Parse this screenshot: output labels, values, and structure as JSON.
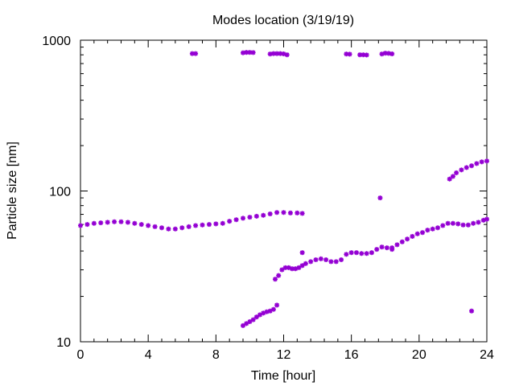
{
  "chart_data": {
    "type": "scatter",
    "title": "Modes location (3/19/19)",
    "xlabel": "Time [hour]",
    "ylabel": "Particle size [nm]",
    "xlim": [
      0,
      24
    ],
    "ylim": [
      10,
      1000
    ],
    "yscale": "log",
    "xticks": [
      0,
      4,
      8,
      12,
      16,
      20,
      24
    ],
    "xtick_labels": [
      "0",
      "4",
      "8",
      "12",
      "16",
      "20",
      "24"
    ],
    "yticks": [
      10,
      100,
      1000
    ],
    "ytick_labels": [
      "10",
      "100",
      "1000"
    ],
    "grid": false,
    "marker_color": "#9400d3",
    "series": [
      {
        "points": [
          [
            0,
            59
          ],
          [
            0.4,
            60
          ],
          [
            0.8,
            61
          ],
          [
            1.2,
            61.5
          ],
          [
            1.6,
            62
          ],
          [
            2,
            62.5
          ],
          [
            2.4,
            62.5
          ],
          [
            2.8,
            62
          ],
          [
            3.2,
            61
          ],
          [
            3.6,
            60
          ],
          [
            4,
            59
          ],
          [
            4.4,
            58
          ],
          [
            4.8,
            57
          ],
          [
            5.2,
            56
          ],
          [
            5.6,
            56
          ],
          [
            6,
            57
          ],
          [
            6.4,
            58
          ],
          [
            6.8,
            59
          ],
          [
            7.2,
            59.5
          ],
          [
            7.6,
            60
          ],
          [
            8,
            60.5
          ],
          [
            8.4,
            61
          ],
          [
            8.8,
            63
          ],
          [
            9.2,
            64.5
          ],
          [
            9.6,
            66
          ],
          [
            10,
            67
          ],
          [
            10.4,
            68
          ],
          [
            10.8,
            69
          ],
          [
            11.2,
            70.5
          ],
          [
            11.6,
            72
          ],
          [
            12,
            72
          ],
          [
            12.4,
            71.5
          ],
          [
            12.8,
            71.5
          ],
          [
            13.1,
            71
          ],
          [
            9.6,
            12.8
          ],
          [
            9.8,
            13.2
          ],
          [
            10,
            13.6
          ],
          [
            10.2,
            14
          ],
          [
            10.4,
            14.6
          ],
          [
            10.6,
            15.1
          ],
          [
            10.8,
            15.5
          ],
          [
            11,
            15.8
          ],
          [
            11.2,
            16
          ],
          [
            11.4,
            16.4
          ],
          [
            11.6,
            17.5
          ],
          [
            11.5,
            26
          ],
          [
            11.7,
            27.5
          ],
          [
            11.9,
            30
          ],
          [
            12.1,
            31
          ],
          [
            12.3,
            31
          ],
          [
            12.5,
            30.5
          ],
          [
            12.7,
            30.5
          ],
          [
            12.9,
            31
          ],
          [
            13.1,
            32
          ],
          [
            13.3,
            33
          ],
          [
            13.6,
            34
          ],
          [
            13.9,
            35
          ],
          [
            14.2,
            35.5
          ],
          [
            14.5,
            35
          ],
          [
            14.8,
            34
          ],
          [
            15.1,
            34
          ],
          [
            15.4,
            35
          ],
          [
            15.7,
            38
          ],
          [
            16,
            39
          ],
          [
            16.3,
            39
          ],
          [
            16.6,
            38.5
          ],
          [
            16.9,
            38.5
          ],
          [
            17.2,
            39
          ],
          [
            17.5,
            41
          ],
          [
            17.8,
            42.5
          ],
          [
            18.1,
            42
          ],
          [
            18.4,
            42
          ],
          [
            18.7,
            44
          ],
          [
            19,
            46
          ],
          [
            19.3,
            48
          ],
          [
            19.6,
            50
          ],
          [
            19.9,
            52
          ],
          [
            20.2,
            53
          ],
          [
            20.5,
            55
          ],
          [
            20.8,
            56
          ],
          [
            21.1,
            57
          ],
          [
            21.4,
            59
          ],
          [
            21.7,
            61
          ],
          [
            22,
            61
          ],
          [
            22.3,
            60.5
          ],
          [
            22.6,
            59.5
          ],
          [
            22.9,
            59.5
          ],
          [
            23.2,
            61
          ],
          [
            23.5,
            62
          ],
          [
            23.8,
            64
          ],
          [
            24,
            65
          ],
          [
            13.1,
            39
          ],
          [
            17.7,
            90
          ],
          [
            18.4,
            41
          ],
          [
            23.1,
            16
          ],
          [
            21.8,
            120
          ],
          [
            22,
            125
          ],
          [
            22.2,
            132
          ],
          [
            22.5,
            138
          ],
          [
            22.8,
            143
          ],
          [
            23.1,
            147
          ],
          [
            23.4,
            152
          ],
          [
            23.7,
            156
          ],
          [
            24,
            158
          ],
          [
            6.6,
            815
          ],
          [
            6.8,
            815
          ],
          [
            9.6,
            825
          ],
          [
            9.8,
            830
          ],
          [
            10,
            830
          ],
          [
            10.2,
            828
          ],
          [
            11.2,
            810
          ],
          [
            11.4,
            815
          ],
          [
            11.6,
            815
          ],
          [
            11.8,
            815
          ],
          [
            12,
            812
          ],
          [
            12.2,
            800
          ],
          [
            15.7,
            810
          ],
          [
            15.9,
            808
          ],
          [
            16.5,
            800
          ],
          [
            16.7,
            800
          ],
          [
            16.9,
            798
          ],
          [
            17.8,
            810
          ],
          [
            18,
            820
          ],
          [
            18.2,
            818
          ],
          [
            18.4,
            812
          ]
        ]
      }
    ]
  }
}
